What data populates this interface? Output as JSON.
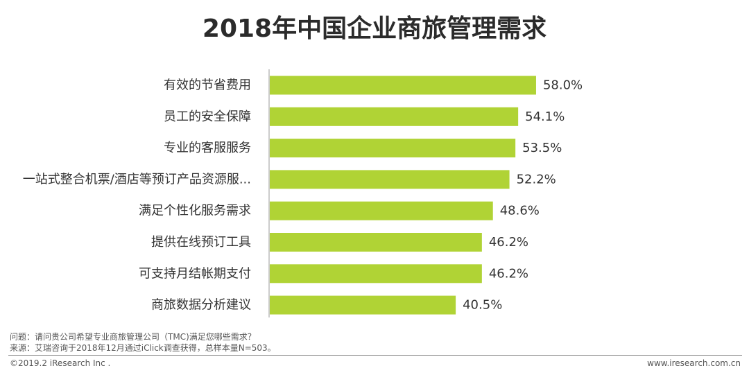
{
  "title": "2018年中国企业商旅管理需求",
  "chart_data": {
    "type": "bar",
    "orientation": "horizontal",
    "title": "2018年中国企业商旅管理需求",
    "categories": [
      "有效的节省费用",
      "员工的安全保障",
      "专业的客服服务",
      "一站式整合机票/酒店等预订产品资源服...",
      "满足个性化服务需求",
      "提供在线预订工具",
      "可支持月结帐期支付",
      "商旅数据分析建议"
    ],
    "values": [
      58.0,
      54.1,
      53.5,
      52.2,
      48.6,
      46.2,
      46.2,
      40.5
    ],
    "value_labels": [
      "58.0%",
      "54.1%",
      "53.5%",
      "52.2%",
      "48.6%",
      "46.2%",
      "46.2%",
      "40.5%"
    ],
    "unit": "%",
    "xlim": [
      0,
      100
    ],
    "bar_color": "#b0d335",
    "grid": false
  },
  "footnotes": {
    "question": "问题：请问贵公司希望专业商旅管理公司（TMC)满足您哪些需求？",
    "source": "来源：艾瑞咨询于2018年12月通过iClick调查获得，总样本量N=503。"
  },
  "footer": {
    "copyright": "©2019.2 iResearch Inc .",
    "website": "www.iresearch.com.cn"
  }
}
